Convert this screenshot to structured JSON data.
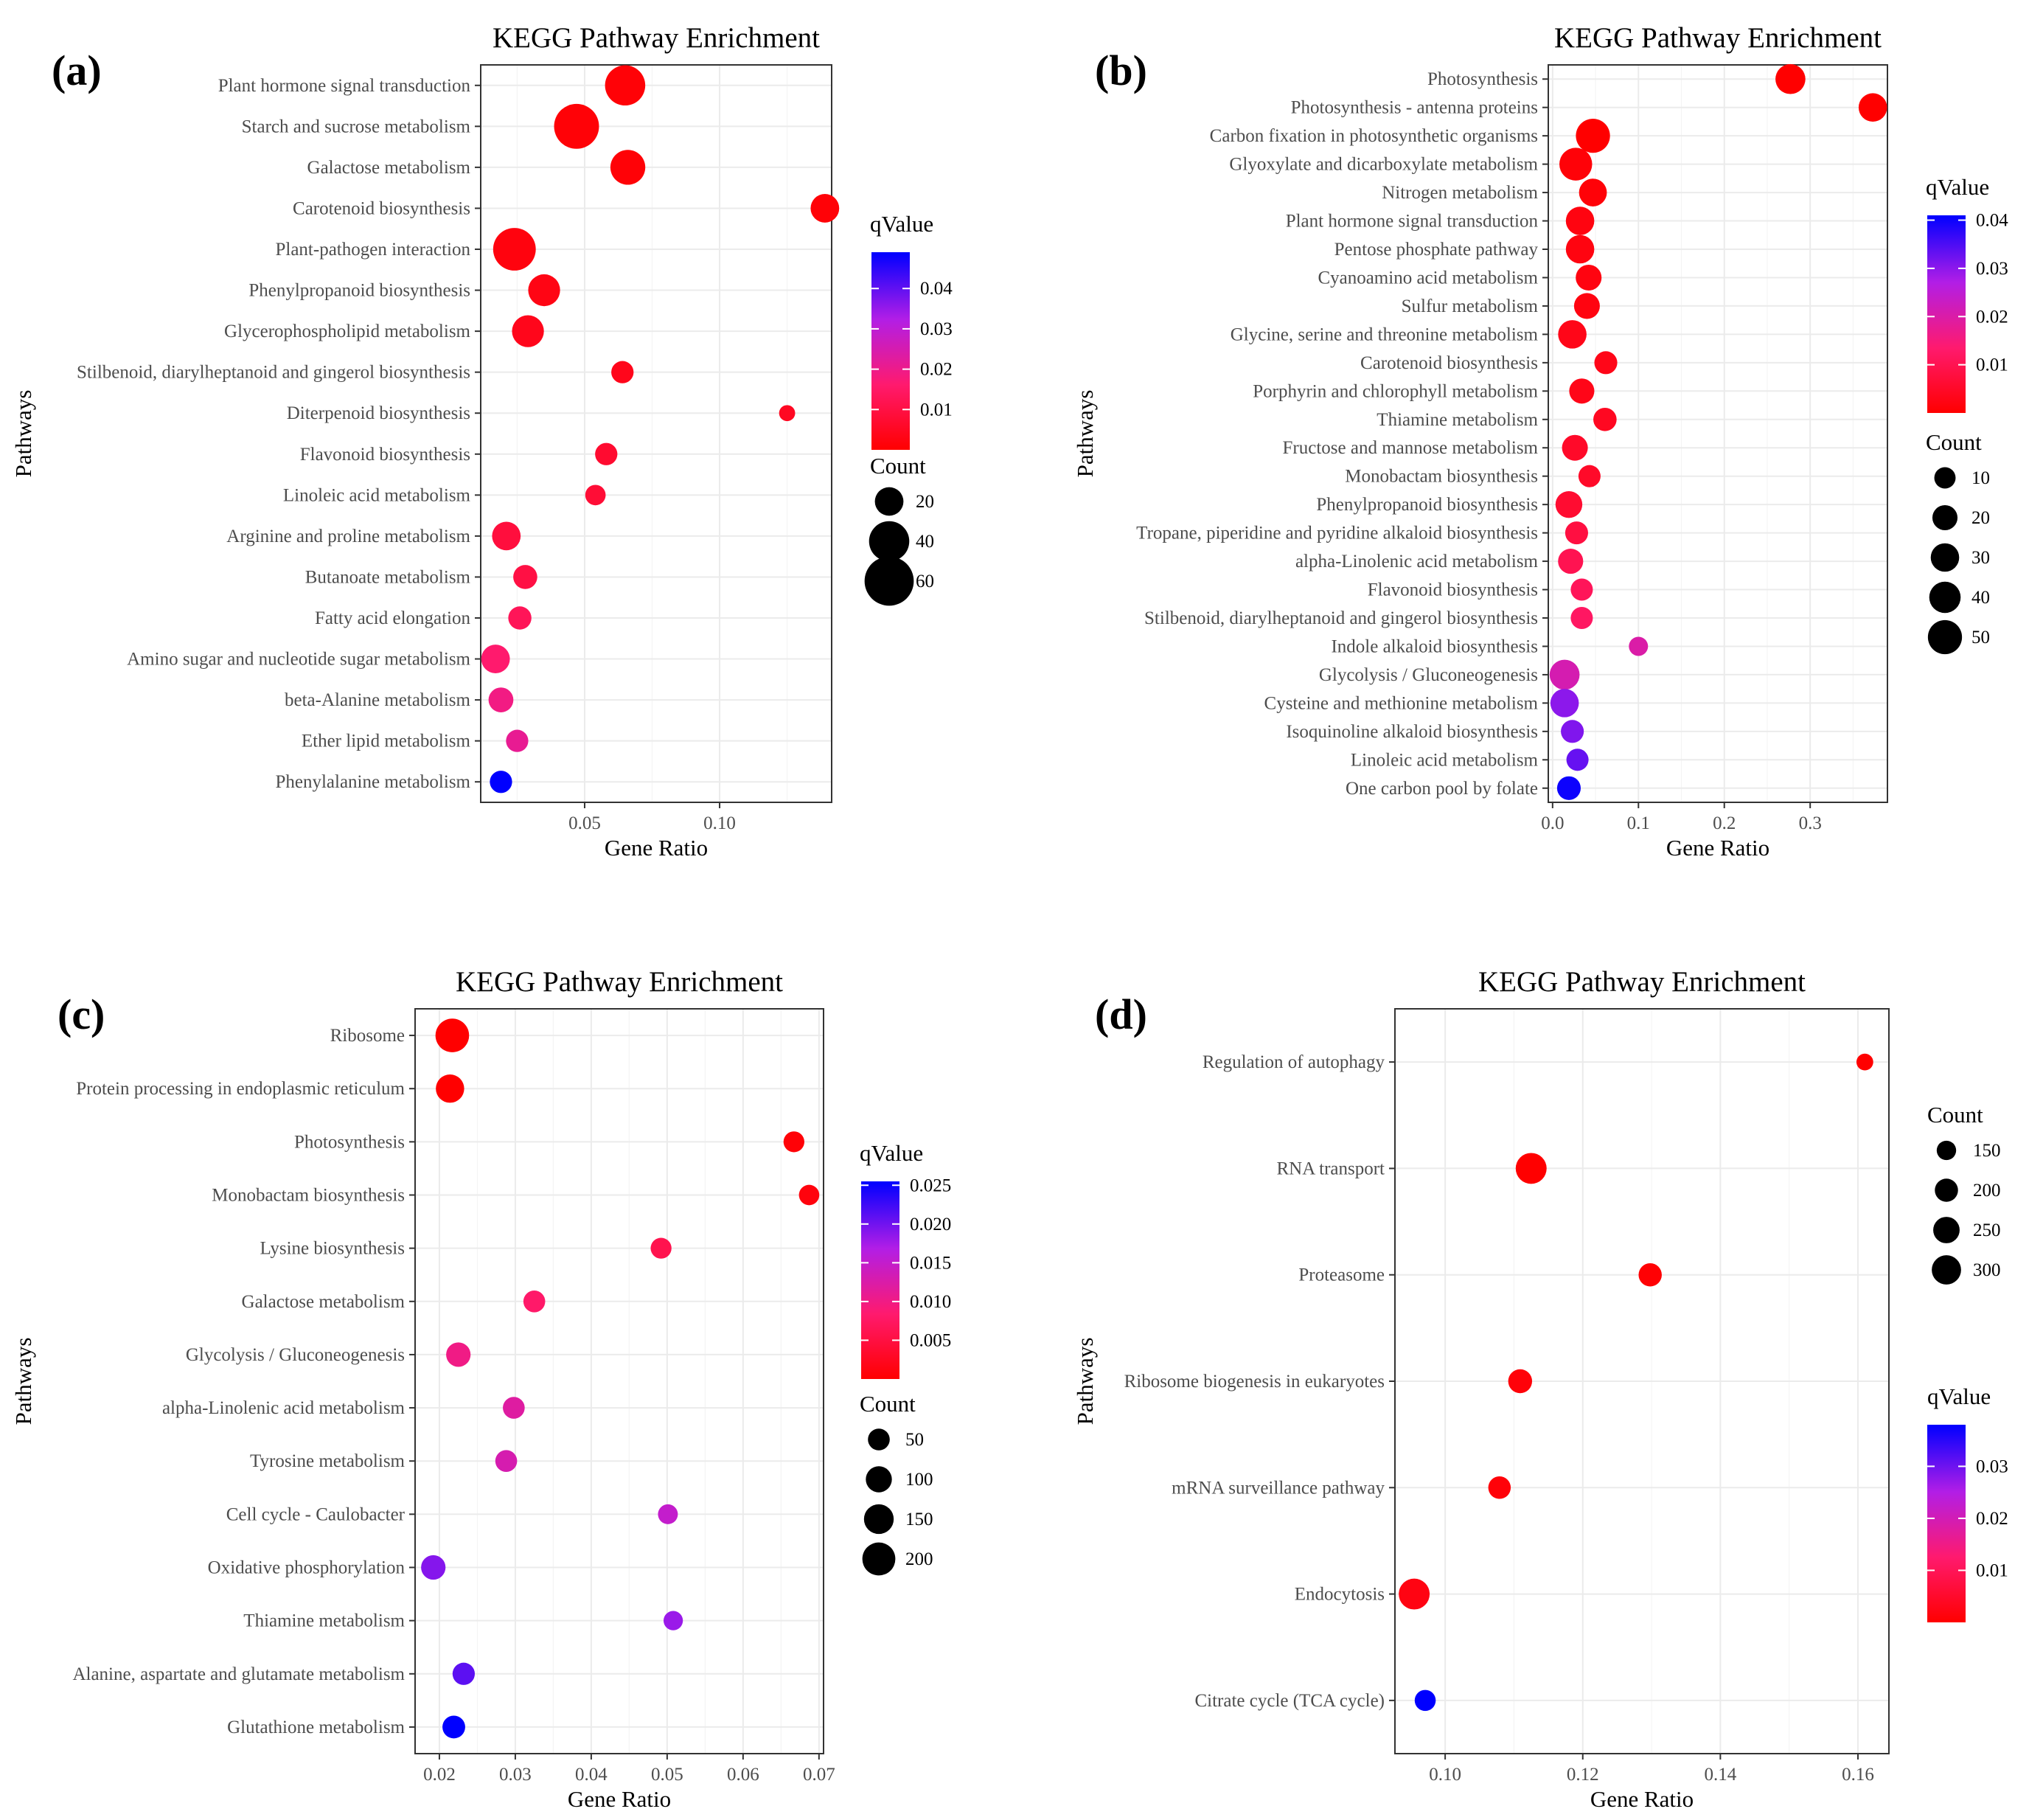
{
  "chart_data": [
    {
      "id": "a",
      "type": "scatter",
      "panel_label": "(a)",
      "title": "KEGG Pathway Enrichment",
      "xlabel": "Gene Ratio",
      "ylabel": "Pathways",
      "xlim": [
        0.0115,
        0.1415
      ],
      "xticks": [
        0.05,
        0.1
      ],
      "xtick_labels": [
        "0.05",
        "0.10"
      ],
      "color_scale": {
        "title": "qValue",
        "min": 0.0,
        "max": 0.049,
        "ticks": [
          0.01,
          0.02,
          0.03,
          0.04
        ],
        "tick_labels": [
          "0.01",
          "0.02",
          "0.03",
          "0.04"
        ]
      },
      "size_scale": {
        "title": "Count",
        "min": 5,
        "max": 70,
        "ticks": [
          20,
          40,
          60
        ],
        "tick_labels": [
          "20",
          "40",
          "60"
        ]
      },
      "legend_order": [
        "color",
        "size"
      ],
      "pathways": [
        "Plant hormone signal transduction",
        "Starch and sucrose metabolism",
        "Galactose metabolism",
        "Carotenoid biosynthesis",
        "Plant-pathogen interaction",
        "Phenylpropanoid biosynthesis",
        "Glycerophospholipid metabolism",
        "Stilbenoid, diarylheptanoid and gingerol biosynthesis",
        "Diterpenoid biosynthesis",
        "Flavonoid biosynthesis",
        "Linoleic acid metabolism",
        "Arginine and proline metabolism",
        "Butanoate metabolism",
        "Fatty acid elongation",
        "Amino sugar and nucleotide sugar metabolism",
        "beta-Alanine metabolism",
        "Ether lipid metabolism",
        "Phenylalanine metabolism"
      ],
      "gene_ratio": [
        0.065,
        0.047,
        0.066,
        0.139,
        0.024,
        0.035,
        0.029,
        0.064,
        0.125,
        0.058,
        0.054,
        0.021,
        0.028,
        0.026,
        0.017,
        0.019,
        0.025,
        0.019
      ],
      "count": [
        40,
        50,
        30,
        20,
        45,
        25,
        25,
        12,
        6,
        12,
        10,
        20,
        14,
        13,
        20,
        15,
        12,
        12
      ],
      "qvalue": [
        0.001,
        0.001,
        0.001,
        0.001,
        0.002,
        0.003,
        0.004,
        0.004,
        0.005,
        0.007,
        0.008,
        0.009,
        0.01,
        0.013,
        0.016,
        0.019,
        0.021,
        0.049
      ]
    },
    {
      "id": "b",
      "type": "scatter",
      "panel_label": "(b)",
      "title": "KEGG Pathway Enrichment",
      "xlabel": "Gene Ratio",
      "ylabel": "Pathways",
      "xlim": [
        -0.005,
        0.39
      ],
      "xticks": [
        0.0,
        0.1,
        0.2,
        0.3
      ],
      "xtick_labels": [
        "0.0",
        "0.1",
        "0.2",
        "0.3"
      ],
      "color_scale": {
        "title": "qValue",
        "min": 0.0,
        "max": 0.041,
        "ticks": [
          0.01,
          0.02,
          0.03,
          0.04
        ],
        "tick_labels": [
          "0.01",
          "0.02",
          "0.03",
          "0.04"
        ]
      },
      "size_scale": {
        "title": "Count",
        "min": 2,
        "max": 55,
        "ticks": [
          10,
          20,
          30,
          40,
          50
        ],
        "tick_labels": [
          "10",
          "20",
          "30",
          "40",
          "50"
        ]
      },
      "legend_order": [
        "color",
        "size"
      ],
      "pathways": [
        "Photosynthesis",
        "Photosynthesis - antenna proteins",
        "Carbon fixation in photosynthetic organisms",
        "Glyoxylate and dicarboxylate metabolism",
        "Nitrogen metabolism",
        "Plant hormone signal transduction",
        "Pentose phosphate pathway",
        "Cyanoamino acid metabolism",
        "Sulfur metabolism",
        "Glycine, serine and threonine metabolism",
        "Carotenoid biosynthesis",
        "Porphyrin and chlorophyll metabolism",
        "Thiamine metabolism",
        "Fructose and mannose metabolism",
        "Monobactam biosynthesis",
        "Phenylpropanoid biosynthesis",
        "Tropane, piperidine and pyridine alkaloid biosynthesis",
        "alpha-Linolenic acid metabolism",
        "Flavonoid biosynthesis",
        "Stilbenoid, diarylheptanoid and gingerol biosynthesis",
        "Indole alkaloid biosynthesis",
        "Glycolysis / Gluconeogenesis",
        "Cysteine and methionine metabolism",
        "Isoquinoline alkaloid biosynthesis",
        "Linoleic acid metabolism",
        "One carbon pool by folate"
      ],
      "gene_ratio": [
        0.277,
        0.373,
        0.047,
        0.027,
        0.047,
        0.032,
        0.032,
        0.042,
        0.04,
        0.023,
        0.062,
        0.034,
        0.061,
        0.026,
        0.043,
        0.019,
        0.028,
        0.021,
        0.034,
        0.034,
        0.1,
        0.014,
        0.014,
        0.023,
        0.029,
        0.019
      ],
      "count": [
        35,
        30,
        50,
        45,
        28,
        30,
        30,
        22,
        22,
        30,
        14,
        20,
        15,
        22,
        12,
        25,
        14,
        20,
        12,
        12,
        5,
        35,
        30,
        14,
        12,
        16
      ],
      "qvalue": [
        0.0,
        0.0,
        0.0,
        0.001,
        0.001,
        0.002,
        0.002,
        0.002,
        0.002,
        0.003,
        0.003,
        0.003,
        0.004,
        0.005,
        0.005,
        0.006,
        0.008,
        0.01,
        0.011,
        0.012,
        0.02,
        0.021,
        0.03,
        0.031,
        0.033,
        0.04
      ]
    },
    {
      "id": "c",
      "type": "scatter",
      "panel_label": "(c)",
      "title": "KEGG Pathway Enrichment",
      "xlabel": "Gene Ratio",
      "ylabel": "Pathways",
      "xlim": [
        0.0168,
        0.0706
      ],
      "xticks": [
        0.02,
        0.03,
        0.04,
        0.05,
        0.06,
        0.07
      ],
      "xtick_labels": [
        "0.02",
        "0.03",
        "0.04",
        "0.05",
        "0.06",
        "0.07"
      ],
      "color_scale": {
        "title": "qValue",
        "min": 0.0,
        "max": 0.0255,
        "ticks": [
          0.005,
          0.01,
          0.015,
          0.02,
          0.025
        ],
        "tick_labels": [
          "0.005",
          "0.010",
          "0.015",
          "0.020",
          "0.025"
        ]
      },
      "size_scale": {
        "title": "Count",
        "min": 10,
        "max": 240,
        "ticks": [
          50,
          100,
          150,
          200
        ],
        "tick_labels": [
          "50",
          "100",
          "150",
          "200"
        ]
      },
      "legend_order": [
        "color",
        "size"
      ],
      "pathways": [
        "Ribosome",
        "Protein processing in endoplasmic reticulum",
        "Photosynthesis",
        "Monobactam biosynthesis",
        "Lysine biosynthesis",
        "Galactose metabolism",
        "Glycolysis / Gluconeogenesis",
        "alpha-Linolenic acid metabolism",
        "Tyrosine metabolism",
        "Cell cycle - Caulobacter",
        "Oxidative phosphorylation",
        "Thiamine metabolism",
        "Alanine, aspartate and glutamate metabolism",
        "Glutathione metabolism"
      ],
      "gene_ratio": [
        0.0217,
        0.0214,
        0.0667,
        0.0687,
        0.0492,
        0.0325,
        0.0225,
        0.0298,
        0.0288,
        0.0501,
        0.0192,
        0.0508,
        0.0232,
        0.0219
      ],
      "count": [
        210,
        130,
        40,
        35,
        40,
        50,
        80,
        50,
        50,
        30,
        80,
        25,
        55,
        60
      ],
      "qvalue": [
        0.0,
        0.0,
        0.0005,
        0.001,
        0.006,
        0.008,
        0.01,
        0.012,
        0.013,
        0.015,
        0.019,
        0.018,
        0.021,
        0.0255
      ]
    },
    {
      "id": "d",
      "type": "scatter",
      "panel_label": "(d)",
      "title": "KEGG Pathway Enrichment",
      "xlabel": "Gene Ratio",
      "ylabel": "Pathways",
      "xlim": [
        0.0927,
        0.1645
      ],
      "xticks": [
        0.1,
        0.12,
        0.14,
        0.16
      ],
      "xtick_labels": [
        "0.10",
        "0.12",
        "0.14",
        "0.16"
      ],
      "color_scale": {
        "title": "qValue",
        "min": 0.0,
        "max": 0.038,
        "ticks": [
          0.01,
          0.02,
          0.03
        ],
        "tick_labels": [
          "0.01",
          "0.02",
          "0.03"
        ]
      },
      "size_scale": {
        "title": "Count",
        "min": 100,
        "max": 360,
        "ticks": [
          150,
          200,
          250,
          300
        ],
        "tick_labels": [
          "150",
          "200",
          "250",
          "300"
        ]
      },
      "legend_order": [
        "size",
        "color"
      ],
      "pathways": [
        "Regulation of autophagy",
        "RNA transport",
        "Proteasome",
        "Ribosome biogenesis in eukaryotes",
        "mRNA surveillance pathway",
        "Endocytosis",
        "Citrate cycle (TCA cycle)"
      ],
      "gene_ratio": [
        0.161,
        0.1125,
        0.1298,
        0.1109,
        0.1079,
        0.0955,
        0.0971
      ],
      "count": [
        120,
        330,
        200,
        210,
        190,
        330,
        170
      ],
      "qvalue": [
        0.0,
        0.0,
        0.0005,
        0.001,
        0.001,
        0.002,
        0.038
      ]
    }
  ]
}
